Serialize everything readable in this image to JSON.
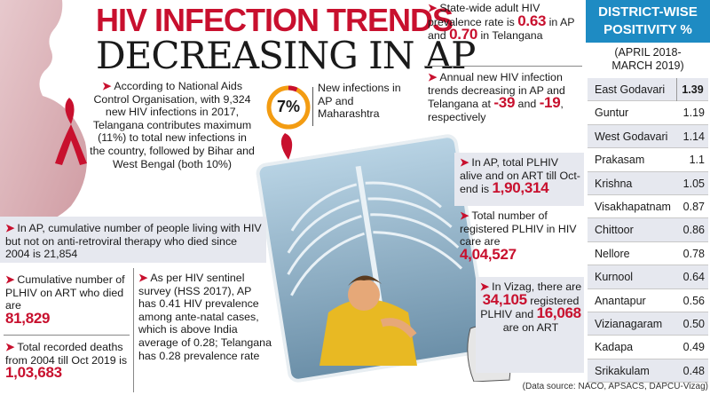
{
  "title": {
    "line1": "HIV INFECTION TRENDS",
    "line2": "DECREASING IN AP"
  },
  "pie": {
    "percent": "7%",
    "value": 7,
    "label": "New infections in AP and Maharashtra"
  },
  "blurbs": {
    "naco": {
      "text": "According to National Aids Control Organisation, with 9,324 new HIV infections in 2017, Telangana contributes maximum (11%) to total new infections in the country, followed by Bihar and West Bengal (both 10%)"
    },
    "cumulative": {
      "text": "In AP, cumulative number of people living with HIV but not on anti-retroviral therapy who died since 2004 is 21,854"
    },
    "art_died": {
      "text": "Cumulative number of PLHIV on ART who died are",
      "value": "81,829"
    },
    "deaths": {
      "text": "Total recorded deaths from 2004 till Oct 2019 is",
      "value": "1,03,683"
    },
    "sentinel": {
      "text": "As per HIV sentinel survey (HSS 2017), AP has 0.41 HIV prevalence among ante-natal cases, which is above India average of 0.28; Telangana has 0.28 prevalence rate"
    },
    "prevalence": {
      "lead": "State-wide adult HIV prevalence rate is",
      "ap_value": "0.63",
      "mid": "in AP and",
      "tg_value": "0.70",
      "tail": "in Telangana"
    },
    "annual": {
      "lead": "Annual new HIV infection trends decreasing in AP and Telangana at",
      "ap_value": "-39",
      "mid": "and",
      "tg_value": "-19",
      "tail": ", respectively"
    },
    "plhiv_art": {
      "text": "In AP, total PLHIV alive and on ART till Oct-end is",
      "value": "1,90,314"
    },
    "registered": {
      "text": "Total number of registered PLHIV in HIV care are",
      "value": "4,04,527"
    },
    "vizag": {
      "lead": "In Vizag, there are",
      "reg_value": "34,105",
      "mid": "registered PLHIV and",
      "art_value": "16,068",
      "tail": "are on ART"
    }
  },
  "district": {
    "title_line1": "DISTRICT-WISE",
    "title_line2": "POSITIVITY %",
    "subtitle_line1": "(APRIL 2018-",
    "subtitle_line2": "MARCH 2019)",
    "rows": [
      {
        "name": "East Godavari",
        "value": "1.39"
      },
      {
        "name": "Guntur",
        "value": "1.19"
      },
      {
        "name": "West Godavari",
        "value": "1.14"
      },
      {
        "name": "Prakasam",
        "value": "1.1"
      },
      {
        "name": "Krishna",
        "value": "1.05"
      },
      {
        "name": "Visakhapatnam",
        "value": "0.87"
      },
      {
        "name": "Chittoor",
        "value": "0.86"
      },
      {
        "name": "Nellore",
        "value": "0.78"
      },
      {
        "name": "Kurnool",
        "value": "0.64"
      },
      {
        "name": "Anantapur",
        "value": "0.56"
      },
      {
        "name": "Vizianagaram",
        "value": "0.50"
      },
      {
        "name": "Kadapa",
        "value": "0.49"
      },
      {
        "name": "Srikakulam",
        "value": "0.48"
      }
    ]
  },
  "source": "(Data source: NACO, APSACS, DAPCU-Vizag)",
  "colors": {
    "accent_red": "#c8102e",
    "header_blue": "#1e8bc3",
    "shade": "#e6e8ef",
    "pie_orange": "#f39c12"
  }
}
